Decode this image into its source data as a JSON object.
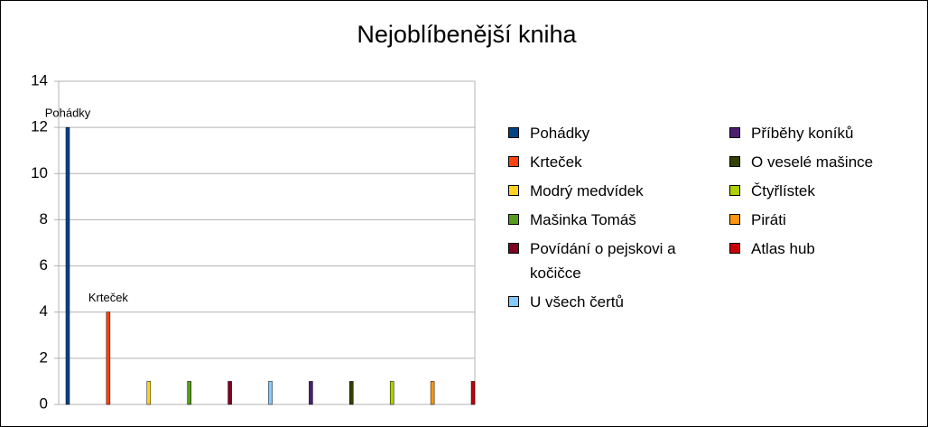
{
  "chart_data": {
    "type": "bar",
    "title": "Nejoblíbenější kniha",
    "ylim": [
      0,
      14
    ],
    "yticks": [
      0,
      2,
      4,
      6,
      8,
      10,
      12,
      14
    ],
    "grid": true,
    "series": [
      {
        "name": "Pohádky",
        "color": "#004586",
        "values": [
          12
        ],
        "show_label": true
      },
      {
        "name": "Krteček",
        "color": "#ff420e",
        "values": [
          4
        ],
        "show_label": true
      },
      {
        "name": "Modrý medvídek",
        "color": "#ffd320",
        "values": [
          1
        ]
      },
      {
        "name": "Mašinka Tomáš",
        "color": "#579d1c",
        "values": [
          1
        ]
      },
      {
        "name": "Povídání o pejskovi a kočičce",
        "color": "#7e0021",
        "values": [
          1
        ]
      },
      {
        "name": "U všech čertů",
        "color": "#83caff",
        "values": [
          1
        ]
      },
      {
        "name": "Příběhy koníků",
        "color": "#4b1f6f",
        "values": [
          1
        ]
      },
      {
        "name": "O veselé mašince",
        "color": "#314004",
        "values": [
          1
        ]
      },
      {
        "name": "Čtyřlístek",
        "color": "#aecf00",
        "values": [
          1
        ]
      },
      {
        "name": "Piráti",
        "color": "#ff950e",
        "values": [
          1
        ]
      },
      {
        "name": "Atlas hub",
        "color": "#c5000b",
        "values": [
          1
        ]
      }
    ]
  }
}
